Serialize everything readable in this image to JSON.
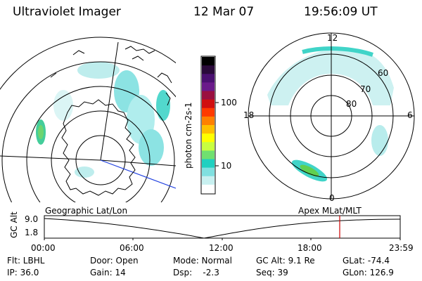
{
  "header": {
    "instrument": "Ultraviolet Imager",
    "date": "12 Mar 07",
    "time": "19:56:09 UT"
  },
  "colorbar": {
    "unit_label": "photon cm-2s-1",
    "ticks": [
      "100",
      "10"
    ],
    "colors": [
      "#000000",
      "#2a0a3a",
      "#4a1070",
      "#6a1a8a",
      "#9a1040",
      "#d01010",
      "#ff3a00",
      "#ff8000",
      "#ffc000",
      "#ffff00",
      "#c8ff40",
      "#70e070",
      "#20d0c0",
      "#80e0e0",
      "#c8f0f0",
      "#ffffff"
    ]
  },
  "right_map": {
    "clock_labels": {
      "top": "12",
      "left": "18",
      "right": "6",
      "bottom": "0"
    },
    "lat_labels": [
      "60",
      "70",
      "80"
    ]
  },
  "timeline": {
    "left_label": "Geographic Lat/Lon",
    "right_label": "Apex MLat/MLT",
    "axis_title": "GC Alt",
    "y_ticks": [
      "9.0",
      "1.8"
    ],
    "x_ticks": [
      "00:00",
      "06:00",
      "12:00",
      "18:00",
      "23:59"
    ],
    "marker_color": "#cc0000"
  },
  "status": {
    "row1": {
      "filter": "Flt: LBHL",
      "door": "Door: Open",
      "mode": "Mode: Normal",
      "gc_alt": "GC Alt: 9.1 Re",
      "glat": "GLat: -74.4"
    },
    "row2": {
      "ip": "IP: 36.0",
      "gain": "Gain: 14",
      "dsp": "Dsp:    -2.3",
      "seq": "Seq: 39",
      "glon": "GLon: 126.9"
    }
  }
}
